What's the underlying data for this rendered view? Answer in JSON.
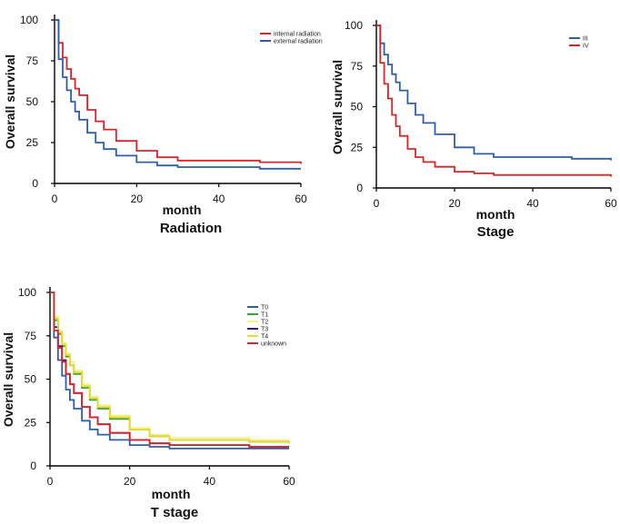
{
  "chart_data": [
    {
      "type": "line",
      "subtitle": "Radiation",
      "xlabel": "month",
      "ylabel": "Overall survival",
      "xlim": [
        0,
        60
      ],
      "ylim": [
        0,
        100
      ],
      "xticks": [
        0,
        20,
        40,
        60
      ],
      "yticks": [
        0,
        25,
        50,
        75,
        100
      ],
      "legend_position": "top-right",
      "series": [
        {
          "name": "internal radiation",
          "color": "#d7262b",
          "x": [
            0,
            1,
            2,
            3,
            4,
            5,
            6,
            8,
            10,
            12,
            15,
            20,
            25,
            30,
            40,
            50,
            60
          ],
          "y": [
            100,
            86,
            77,
            70,
            64,
            58,
            54,
            45,
            38,
            33,
            26,
            20,
            16,
            14,
            14,
            13,
            12
          ]
        },
        {
          "name": "external radiation",
          "color": "#2e5ea9",
          "x": [
            0,
            1,
            2,
            3,
            4,
            5,
            6,
            8,
            10,
            12,
            15,
            20,
            25,
            30,
            40,
            50,
            60
          ],
          "y": [
            100,
            76,
            65,
            57,
            50,
            44,
            39,
            31,
            25,
            21,
            17,
            13,
            11,
            10,
            10,
            9,
            9
          ]
        }
      ]
    },
    {
      "type": "line",
      "subtitle": "Stage",
      "xlabel": "month",
      "ylabel": "Overall survival",
      "xlim": [
        0,
        60
      ],
      "ylim": [
        0,
        100
      ],
      "xticks": [
        0,
        20,
        40,
        60
      ],
      "yticks": [
        0,
        25,
        50,
        75,
        100
      ],
      "legend_position": "top-right",
      "series": [
        {
          "name": "III",
          "color": "#2e5ea9",
          "x": [
            0,
            1,
            2,
            3,
            4,
            5,
            6,
            8,
            10,
            12,
            15,
            20,
            25,
            30,
            40,
            50,
            60
          ],
          "y": [
            100,
            89,
            82,
            76,
            70,
            65,
            60,
            52,
            45,
            40,
            33,
            25,
            21,
            19,
            19,
            18,
            17
          ]
        },
        {
          "name": "IV",
          "color": "#d7262b",
          "x": [
            0,
            1,
            2,
            3,
            4,
            5,
            6,
            8,
            10,
            12,
            15,
            20,
            25,
            30,
            40,
            50,
            60
          ],
          "y": [
            100,
            77,
            64,
            55,
            45,
            38,
            32,
            24,
            19,
            16,
            13,
            10,
            9,
            8,
            8,
            8,
            7
          ]
        }
      ]
    },
    {
      "type": "line",
      "subtitle": "T stage",
      "xlabel": "month",
      "ylabel": "Overall survival",
      "xlim": [
        0,
        60
      ],
      "ylim": [
        0,
        100
      ],
      "xticks": [
        0,
        20,
        40,
        60
      ],
      "yticks": [
        0,
        25,
        50,
        75,
        100
      ],
      "legend_position": "top-right",
      "series": [
        {
          "name": "T0",
          "color": "#2e5ea9",
          "x": [
            0,
            1,
            2,
            3,
            4,
            5,
            6,
            8,
            10,
            12,
            15,
            20,
            25,
            30,
            40,
            50,
            60
          ],
          "y": [
            100,
            74,
            61,
            52,
            44,
            38,
            33,
            26,
            21,
            18,
            15,
            12,
            11,
            10,
            10,
            10,
            10
          ]
        },
        {
          "name": "T1",
          "color": "#3aa535",
          "x": [
            0,
            1,
            2,
            3,
            4,
            5,
            6,
            8,
            10,
            12,
            15,
            20,
            25,
            30,
            40,
            50,
            60
          ],
          "y": [
            100,
            84,
            76,
            69,
            63,
            58,
            53,
            45,
            38,
            33,
            27,
            21,
            17,
            15,
            15,
            14,
            14
          ]
        },
        {
          "name": "T2",
          "color": "#f2f28a",
          "x": [
            0,
            1,
            2,
            3,
            4,
            5,
            6,
            8,
            10,
            12,
            15,
            20,
            25,
            30,
            40,
            50,
            60
          ],
          "y": [
            100,
            86,
            78,
            71,
            65,
            60,
            55,
            47,
            40,
            35,
            29,
            22,
            18,
            16,
            16,
            15,
            15
          ]
        },
        {
          "name": "T3",
          "color": "#2a1f7a",
          "x": [
            0,
            1,
            2,
            3,
            4,
            5,
            6,
            8,
            10,
            12,
            15,
            20,
            25,
            30,
            40,
            50,
            60
          ],
          "y": [
            100,
            80,
            69,
            61,
            53,
            47,
            42,
            34,
            28,
            24,
            19,
            15,
            13,
            12,
            12,
            11,
            11
          ]
        },
        {
          "name": "T4",
          "color": "#e8d92a",
          "x": [
            0,
            1,
            2,
            3,
            4,
            5,
            6,
            8,
            10,
            12,
            15,
            20,
            25,
            30,
            40,
            50,
            60
          ],
          "y": [
            100,
            85,
            77,
            70,
            64,
            58,
            54,
            46,
            39,
            34,
            28,
            21,
            17,
            15,
            15,
            14,
            13
          ]
        },
        {
          "name": "unknown",
          "color": "#d7262b",
          "x": [
            0,
            1,
            2,
            3,
            4,
            5,
            6,
            8,
            10,
            12,
            15,
            20,
            25,
            30,
            40,
            50,
            60
          ],
          "y": [
            100,
            78,
            68,
            60,
            53,
            47,
            42,
            34,
            28,
            24,
            19,
            15,
            13,
            12,
            12,
            11,
            11
          ]
        }
      ]
    }
  ]
}
